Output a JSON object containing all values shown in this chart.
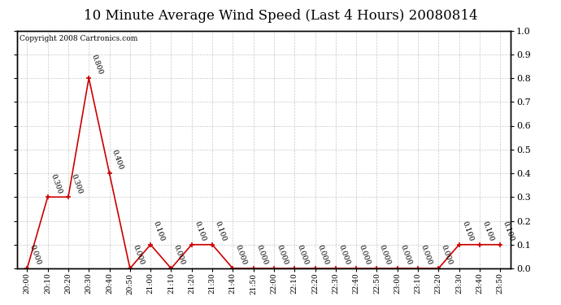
{
  "title": "10 Minute Average Wind Speed (Last 4 Hours) 20080814",
  "copyright": "Copyright 2008 Cartronics.com",
  "x_labels": [
    "20:00",
    "20:10",
    "20:20",
    "20:30",
    "20:40",
    "20:50",
    "21:00",
    "21:10",
    "21:20",
    "21:30",
    "21:40",
    "21:50",
    "22:00",
    "22:10",
    "22:20",
    "22:30",
    "22:40",
    "22:50",
    "23:00",
    "23:10",
    "23:20",
    "23:30",
    "23:40",
    "23:50"
  ],
  "y_values": [
    0.0,
    0.3,
    0.3,
    0.8,
    0.4,
    0.0,
    0.1,
    0.0,
    0.1,
    0.1,
    0.0,
    0.0,
    0.0,
    0.0,
    0.0,
    0.0,
    0.0,
    0.0,
    0.0,
    0.0,
    0.0,
    0.1,
    0.1,
    0.1
  ],
  "line_color": "#cc0000",
  "marker_color": "#cc0000",
  "bg_color": "#ffffff",
  "grid_color": "#bbbbbb",
  "title_fontsize": 12,
  "annotation_fontsize": 6.5,
  "ylim": [
    0.0,
    1.0
  ],
  "yticks_right": [
    0.0,
    0.1,
    0.2,
    0.3,
    0.4,
    0.5,
    0.6,
    0.7,
    0.8,
    0.9,
    1.0
  ]
}
